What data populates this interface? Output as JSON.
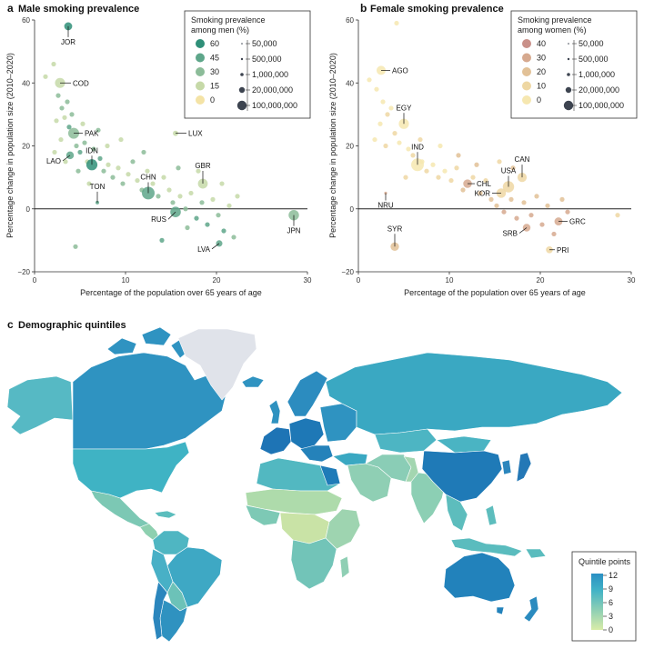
{
  "panel_a": {
    "letter": "a",
    "title": "Male smoking prevalence",
    "legend_title": [
      "Smoking prevalence",
      "among men (%)"
    ],
    "color_levels": [
      {
        "label": "60",
        "color": "#2f8f78"
      },
      {
        "label": "45",
        "color": "#5ea68a"
      },
      {
        "label": "30",
        "color": "#8cbc99"
      },
      {
        "label": "15",
        "color": "#c6d9a8"
      },
      {
        "label": "0",
        "color": "#f4e3a6"
      }
    ],
    "size_levels": [
      "50,000",
      "500,000",
      "1,000,000",
      "20,000,000",
      "100,000,000"
    ]
  },
  "panel_b": {
    "letter": "b",
    "title": "Female smoking prevalence",
    "legend_title": [
      "Smoking prevalence",
      "among women (%)"
    ],
    "color_levels": [
      {
        "label": "40",
        "color": "#c99089"
      },
      {
        "label": "30",
        "color": "#d6a98f"
      },
      {
        "label": "20",
        "color": "#e2c197"
      },
      {
        "label": "10",
        "color": "#eed7a3"
      },
      {
        "label": "0",
        "color": "#f6e7b0"
      }
    ],
    "size_levels": [
      "50,000",
      "500,000",
      "1,000,000",
      "20,000,000",
      "100,000,000"
    ]
  },
  "axes": {
    "xlabel": "Percentage of the population over 65 years of age",
    "ylabel": "Percentage change in population size (2010–2020)",
    "xticks": [
      "0",
      "10",
      "20",
      "30"
    ],
    "yticks": [
      "−20",
      "0",
      "20",
      "40",
      "60"
    ]
  },
  "panel_c": {
    "letter": "c",
    "title": "Demographic quintiles",
    "legend_title": "Quintile points",
    "legend_ticks": [
      "12",
      "9",
      "6",
      "3",
      "0"
    ],
    "gradient_colors": [
      "#d9eca8",
      "#8fcfb4",
      "#42b3c6",
      "#2a8fc3"
    ]
  },
  "chart_data": [
    {
      "type": "scatter",
      "title": "Male smoking prevalence",
      "xlabel": "Percentage of the population over 65 years of age",
      "ylabel": "Percentage change in population size (2010–2020)",
      "xlim": [
        0,
        30
      ],
      "ylim": [
        -20,
        60
      ],
      "grid": false,
      "legend_position": "top-right",
      "labeled_points": [
        {
          "label": "JOR",
          "x": 3.7,
          "y": 58,
          "prev": 60,
          "pop": 10000000
        },
        {
          "label": "COD",
          "x": 2.8,
          "y": 40,
          "prev": 15,
          "pop": 90000000
        },
        {
          "label": "PAK",
          "x": 4.3,
          "y": 24,
          "prev": 30,
          "pop": 220000000
        },
        {
          "label": "LAO",
          "x": 3.9,
          "y": 17,
          "prev": 45,
          "pop": 7000000
        },
        {
          "label": "IDN",
          "x": 6.3,
          "y": 14,
          "prev": 60,
          "pop": 270000000
        },
        {
          "label": "TON",
          "x": 6.9,
          "y": 2,
          "prev": 45,
          "pop": 100000
        },
        {
          "label": "CHN",
          "x": 12.5,
          "y": 5,
          "prev": 45,
          "pop": 1400000000
        },
        {
          "label": "LUX",
          "x": 15.5,
          "y": 24,
          "prev": 15,
          "pop": 600000
        },
        {
          "label": "GBR",
          "x": 18.5,
          "y": 8,
          "prev": 15,
          "pop": 67000000
        },
        {
          "label": "RUS",
          "x": 15.5,
          "y": -1,
          "prev": 45,
          "pop": 144000000
        },
        {
          "label": "LVA",
          "x": 20.3,
          "y": -11,
          "prev": 45,
          "pop": 1900000
        },
        {
          "label": "JPN",
          "x": 28.5,
          "y": -2,
          "prev": 30,
          "pop": 126000000
        }
      ],
      "unlabeled_points": [
        {
          "x": 1.2,
          "y": 42,
          "prev": 15
        },
        {
          "x": 2.1,
          "y": 46,
          "prev": 15
        },
        {
          "x": 2.6,
          "y": 36,
          "prev": 30
        },
        {
          "x": 3.0,
          "y": 32,
          "prev": 30
        },
        {
          "x": 3.3,
          "y": 29,
          "prev": 15
        },
        {
          "x": 3.6,
          "y": 34,
          "prev": 30
        },
        {
          "x": 2.4,
          "y": 28,
          "prev": 15
        },
        {
          "x": 3.8,
          "y": 26,
          "prev": 45
        },
        {
          "x": 4.1,
          "y": 30,
          "prev": 30
        },
        {
          "x": 2.9,
          "y": 22,
          "prev": 15
        },
        {
          "x": 4.6,
          "y": 20,
          "prev": 30
        },
        {
          "x": 5.0,
          "y": 18,
          "prev": 45
        },
        {
          "x": 5.5,
          "y": 21,
          "prev": 30
        },
        {
          "x": 3.4,
          "y": 15,
          "prev": 15
        },
        {
          "x": 4.8,
          "y": 12,
          "prev": 30
        },
        {
          "x": 5.8,
          "y": 15,
          "prev": 15
        },
        {
          "x": 6.5,
          "y": 19,
          "prev": 30
        },
        {
          "x": 7.2,
          "y": 16,
          "prev": 45
        },
        {
          "x": 7.6,
          "y": 12,
          "prev": 30
        },
        {
          "x": 8.1,
          "y": 14,
          "prev": 15
        },
        {
          "x": 8.6,
          "y": 10,
          "prev": 30
        },
        {
          "x": 9.2,
          "y": 13,
          "prev": 15
        },
        {
          "x": 9.7,
          "y": 8,
          "prev": 30
        },
        {
          "x": 10.3,
          "y": 11,
          "prev": 15
        },
        {
          "x": 10.8,
          "y": 15,
          "prev": 30
        },
        {
          "x": 11.3,
          "y": 9,
          "prev": 15
        },
        {
          "x": 11.8,
          "y": 6,
          "prev": 30
        },
        {
          "x": 12.4,
          "y": 12,
          "prev": 15
        },
        {
          "x": 13.0,
          "y": 8,
          "prev": 15
        },
        {
          "x": 13.6,
          "y": 4,
          "prev": 30
        },
        {
          "x": 14.2,
          "y": 10,
          "prev": 15
        },
        {
          "x": 14.8,
          "y": 6,
          "prev": 15
        },
        {
          "x": 15.2,
          "y": 2,
          "prev": 30
        },
        {
          "x": 16.0,
          "y": 4,
          "prev": 15
        },
        {
          "x": 16.6,
          "y": 0,
          "prev": 30
        },
        {
          "x": 17.2,
          "y": 5,
          "prev": 15
        },
        {
          "x": 17.8,
          "y": -3,
          "prev": 45
        },
        {
          "x": 18.4,
          "y": 2,
          "prev": 30
        },
        {
          "x": 19.0,
          "y": -5,
          "prev": 45
        },
        {
          "x": 19.6,
          "y": 3,
          "prev": 15
        },
        {
          "x": 20.2,
          "y": -2,
          "prev": 30
        },
        {
          "x": 20.8,
          "y": -7,
          "prev": 45
        },
        {
          "x": 21.4,
          "y": 1,
          "prev": 15
        },
        {
          "x": 21.9,
          "y": -9,
          "prev": 30
        },
        {
          "x": 22.3,
          "y": 4,
          "prev": 15
        },
        {
          "x": 9.5,
          "y": 22,
          "prev": 15
        },
        {
          "x": 14.0,
          "y": -10,
          "prev": 45
        },
        {
          "x": 16.8,
          "y": -6,
          "prev": 30
        },
        {
          "x": 4.5,
          "y": -12,
          "prev": 30
        },
        {
          "x": 6.0,
          "y": 8,
          "prev": 15
        },
        {
          "x": 8.0,
          "y": 20,
          "prev": 15
        },
        {
          "x": 7.0,
          "y": 25,
          "prev": 30
        },
        {
          "x": 5.3,
          "y": 27,
          "prev": 15
        },
        {
          "x": 2.2,
          "y": 18,
          "prev": 15
        },
        {
          "x": 12.0,
          "y": 18,
          "prev": 30
        },
        {
          "x": 18.0,
          "y": 12,
          "prev": 15
        },
        {
          "x": 20.6,
          "y": 8,
          "prev": 15
        },
        {
          "x": 15.8,
          "y": 13,
          "prev": 30
        }
      ]
    },
    {
      "type": "scatter",
      "title": "Female smoking prevalence",
      "xlabel": "Percentage of the population over 65 years of age",
      "ylabel": "Percentage change in population size (2010–2020)",
      "xlim": [
        0,
        30
      ],
      "ylim": [
        -20,
        60
      ],
      "grid": false,
      "legend_position": "top-right",
      "labeled_points": [
        {
          "label": "AGO",
          "x": 2.5,
          "y": 44,
          "prev": 0,
          "pop": 32000000
        },
        {
          "label": "EGY",
          "x": 5.0,
          "y": 27,
          "prev": 0,
          "pop": 100000000
        },
        {
          "label": "IND",
          "x": 6.5,
          "y": 14,
          "prev": 0,
          "pop": 1380000000
        },
        {
          "label": "NRU",
          "x": 3.0,
          "y": 5,
          "prev": 30,
          "pop": 10000
        },
        {
          "label": "CHL",
          "x": 12.0,
          "y": 8,
          "prev": 30,
          "pop": 19000000
        },
        {
          "label": "USA",
          "x": 16.5,
          "y": 7,
          "prev": 10,
          "pop": 331000000
        },
        {
          "label": "KOR",
          "x": 15.7,
          "y": 5,
          "prev": 10,
          "pop": 51000000
        },
        {
          "label": "CAN",
          "x": 18.0,
          "y": 10,
          "prev": 10,
          "pop": 38000000
        },
        {
          "label": "SYR",
          "x": 4.0,
          "y": -12,
          "prev": 20,
          "pop": 17000000
        },
        {
          "label": "SRB",
          "x": 18.5,
          "y": -6,
          "prev": 30,
          "pop": 7000000
        },
        {
          "label": "GRC",
          "x": 22.0,
          "y": -4,
          "prev": 30,
          "pop": 10700000
        },
        {
          "label": "PRI",
          "x": 21.0,
          "y": -13,
          "prev": 10,
          "pop": 3200000
        }
      ],
      "unlabeled_points": [
        {
          "x": 1.2,
          "y": 41,
          "prev": 0
        },
        {
          "x": 2.0,
          "y": 38,
          "prev": 0
        },
        {
          "x": 2.7,
          "y": 34,
          "prev": 0
        },
        {
          "x": 3.2,
          "y": 30,
          "prev": 10
        },
        {
          "x": 3.6,
          "y": 32,
          "prev": 0
        },
        {
          "x": 2.4,
          "y": 27,
          "prev": 0
        },
        {
          "x": 4.0,
          "y": 24,
          "prev": 10
        },
        {
          "x": 4.5,
          "y": 21,
          "prev": 0
        },
        {
          "x": 3.0,
          "y": 20,
          "prev": 10
        },
        {
          "x": 5.5,
          "y": 19,
          "prev": 0
        },
        {
          "x": 6.0,
          "y": 17,
          "prev": 10
        },
        {
          "x": 7.0,
          "y": 15,
          "prev": 0
        },
        {
          "x": 7.5,
          "y": 12,
          "prev": 10
        },
        {
          "x": 8.2,
          "y": 14,
          "prev": 0
        },
        {
          "x": 8.8,
          "y": 10,
          "prev": 10
        },
        {
          "x": 9.5,
          "y": 12,
          "prev": 0
        },
        {
          "x": 10.2,
          "y": 9,
          "prev": 10
        },
        {
          "x": 10.8,
          "y": 13,
          "prev": 10
        },
        {
          "x": 11.5,
          "y": 6,
          "prev": 20
        },
        {
          "x": 12.6,
          "y": 10,
          "prev": 10
        },
        {
          "x": 13.4,
          "y": 5,
          "prev": 20
        },
        {
          "x": 14.0,
          "y": 9,
          "prev": 10
        },
        {
          "x": 14.6,
          "y": 3,
          "prev": 20
        },
        {
          "x": 15.2,
          "y": 1,
          "prev": 20
        },
        {
          "x": 16.0,
          "y": -1,
          "prev": 30
        },
        {
          "x": 16.8,
          "y": 3,
          "prev": 20
        },
        {
          "x": 17.4,
          "y": -3,
          "prev": 30
        },
        {
          "x": 18.2,
          "y": 2,
          "prev": 20
        },
        {
          "x": 19.0,
          "y": -2,
          "prev": 30
        },
        {
          "x": 19.6,
          "y": 4,
          "prev": 20
        },
        {
          "x": 20.2,
          "y": -5,
          "prev": 30
        },
        {
          "x": 20.8,
          "y": 1,
          "prev": 20
        },
        {
          "x": 21.5,
          "y": -8,
          "prev": 30
        },
        {
          "x": 22.4,
          "y": 3,
          "prev": 20
        },
        {
          "x": 23.0,
          "y": -1,
          "prev": 30
        },
        {
          "x": 28.5,
          "y": -2,
          "prev": 10
        },
        {
          "x": 9.0,
          "y": 20,
          "prev": 0
        },
        {
          "x": 6.8,
          "y": 22,
          "prev": 10
        },
        {
          "x": 5.2,
          "y": 10,
          "prev": 10
        },
        {
          "x": 11.0,
          "y": 17,
          "prev": 20
        },
        {
          "x": 13.0,
          "y": 14,
          "prev": 20
        },
        {
          "x": 17.0,
          "y": 13,
          "prev": 20
        },
        {
          "x": 4.2,
          "y": 59,
          "prev": 0
        },
        {
          "x": 1.8,
          "y": 22,
          "prev": 0
        },
        {
          "x": 15.5,
          "y": 15,
          "prev": 10
        }
      ]
    }
  ]
}
